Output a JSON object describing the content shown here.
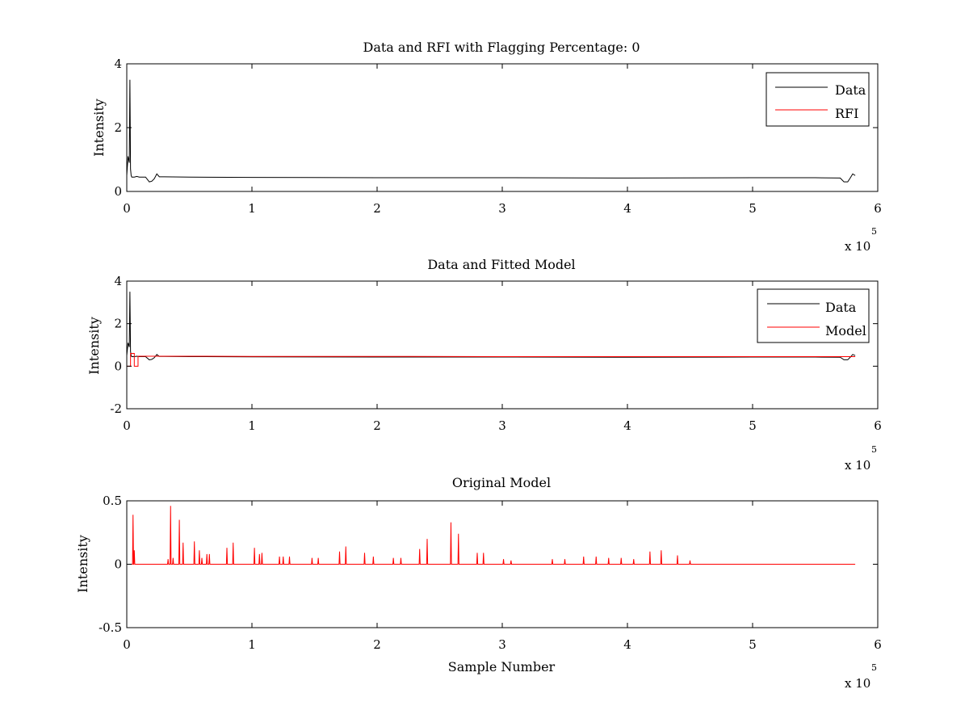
{
  "chart_data": [
    {
      "type": "line",
      "title": "Data and RFI with Flagging Percentage: 0",
      "xlabel": "",
      "ylabel": "Intensity",
      "xlim": [
        0,
        6
      ],
      "ylim": [
        0,
        4
      ],
      "x_ticks": [
        "0",
        "1",
        "2",
        "3",
        "4",
        "5",
        "6"
      ],
      "y_ticks": [
        "0",
        "2",
        "4"
      ],
      "x_multiplier": "x 10",
      "x_exponent": "5",
      "legend": {
        "placement": "top-right",
        "entries": [
          "Data",
          "RFI"
        ]
      },
      "grid": false,
      "series": [
        {
          "name": "Data",
          "color": "#000000",
          "x": [
            0,
            0.01,
            0.02,
            0.025,
            0.03,
            0.035,
            0.04,
            0.05,
            0.06,
            0.08,
            0.1,
            0.12,
            0.15,
            0.18,
            0.2,
            0.22,
            0.24,
            0.26,
            0.3,
            0.5,
            1,
            2,
            3,
            4,
            5,
            5.5,
            5.7,
            5.73,
            5.76,
            5.78,
            5.8,
            5.82
          ],
          "y": [
            0.5,
            1.1,
            0.9,
            3.5,
            0.7,
            0.5,
            0.45,
            0.45,
            0.45,
            0.47,
            0.45,
            0.45,
            0.45,
            0.3,
            0.32,
            0.4,
            0.55,
            0.46,
            0.46,
            0.45,
            0.44,
            0.43,
            0.43,
            0.42,
            0.43,
            0.43,
            0.42,
            0.3,
            0.3,
            0.42,
            0.55,
            0.5
          ]
        },
        {
          "name": "RFI",
          "color": "#ff0000",
          "x": [],
          "y": []
        }
      ]
    },
    {
      "type": "line",
      "title": "Data and Fitted Model",
      "xlabel": "",
      "ylabel": "Intensity",
      "xlim": [
        0,
        6
      ],
      "ylim": [
        -2,
        4
      ],
      "x_ticks": [
        "0",
        "1",
        "2",
        "3",
        "4",
        "5",
        "6"
      ],
      "y_ticks": [
        "-2",
        "0",
        "2",
        "4"
      ],
      "x_multiplier": "x 10",
      "x_exponent": "5",
      "legend": {
        "placement": "top-right",
        "entries": [
          "Data",
          "Model"
        ]
      },
      "grid": false,
      "series": [
        {
          "name": "Data",
          "color": "#000000",
          "x": [
            0,
            0.01,
            0.02,
            0.025,
            0.03,
            0.035,
            0.04,
            0.05,
            0.06,
            0.08,
            0.1,
            0.12,
            0.15,
            0.18,
            0.2,
            0.22,
            0.24,
            0.26,
            0.3,
            0.5,
            1,
            2,
            3,
            4,
            5,
            5.5,
            5.7,
            5.73,
            5.76,
            5.78,
            5.8,
            5.82
          ],
          "y": [
            0.5,
            1.1,
            0.9,
            3.5,
            0.7,
            0.5,
            0.45,
            0.45,
            0.45,
            0.47,
            0.45,
            0.45,
            0.45,
            0.3,
            0.32,
            0.4,
            0.55,
            0.46,
            0.46,
            0.45,
            0.44,
            0.43,
            0.43,
            0.42,
            0.43,
            0.43,
            0.42,
            0.3,
            0.3,
            0.42,
            0.55,
            0.5
          ]
        },
        {
          "name": "Model",
          "color": "#ff0000",
          "x": [
            0,
            0.03,
            0.03,
            0.06,
            0.06,
            0.09,
            0.09,
            0.5,
            1,
            2,
            3,
            4,
            5,
            5.7,
            5.82
          ],
          "y": [
            0,
            0,
            0.6,
            0.6,
            0,
            0,
            0.47,
            0.47,
            0.46,
            0.46,
            0.45,
            0.45,
            0.45,
            0.45,
            0.45
          ]
        }
      ]
    },
    {
      "type": "line",
      "title": "Original Model",
      "xlabel": "Sample Number",
      "ylabel": "Intensity",
      "xlim": [
        0,
        6
      ],
      "ylim": [
        -0.5,
        0.5
      ],
      "x_ticks": [
        "0",
        "1",
        "2",
        "3",
        "4",
        "5",
        "6"
      ],
      "y_ticks": [
        "-0.5",
        "0",
        "0.5"
      ],
      "x_multiplier": "x 10",
      "x_exponent": "5",
      "legend": null,
      "grid": false,
      "series": [
        {
          "color": "#ff0000",
          "baseline": 0.0,
          "peaks_x": [
            0.05,
            0.06,
            0.33,
            0.35,
            0.37,
            0.42,
            0.45,
            0.54,
            0.58,
            0.6,
            0.64,
            0.66,
            0.8,
            0.85,
            1.02,
            1.06,
            1.08,
            1.22,
            1.25,
            1.3,
            1.48,
            1.53,
            1.7,
            1.75,
            1.9,
            1.97,
            2.13,
            2.19,
            2.34,
            2.4,
            2.59,
            2.65,
            2.8,
            2.85,
            3.01,
            3.07,
            3.4,
            3.5,
            3.65,
            3.75,
            3.85,
            3.95,
            4.05,
            4.18,
            4.27,
            4.4,
            4.5
          ],
          "peaks_y": [
            0.39,
            0.11,
            0.04,
            0.46,
            0.05,
            0.35,
            0.17,
            0.18,
            0.11,
            0.05,
            0.08,
            0.08,
            0.13,
            0.17,
            0.13,
            0.08,
            0.09,
            0.06,
            0.06,
            0.06,
            0.05,
            0.05,
            0.1,
            0.14,
            0.09,
            0.06,
            0.05,
            0.05,
            0.12,
            0.2,
            0.33,
            0.24,
            0.09,
            0.09,
            0.04,
            0.03,
            0.04,
            0.04,
            0.06,
            0.06,
            0.05,
            0.05,
            0.04,
            0.1,
            0.11,
            0.07,
            0.03
          ],
          "x_end": 5.82
        }
      ]
    }
  ]
}
